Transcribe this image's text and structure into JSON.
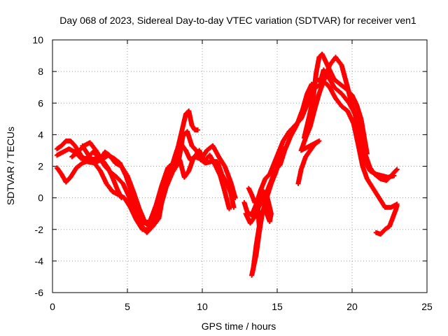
{
  "chart_data": {
    "type": "scatter",
    "title": "Day 068 of 2023, Sidereal Day-to-day VTEC variation (SDTVAR) for receiver ven1",
    "xlabel": "GPS time / hours",
    "ylabel": "SDTVAR / TECUs",
    "xlim": [
      0,
      25
    ],
    "ylim": [
      -6,
      10
    ],
    "xticks": [
      0,
      5,
      10,
      15,
      20,
      25
    ],
    "yticks": [
      -6,
      -4,
      -2,
      0,
      2,
      4,
      6,
      8,
      10
    ],
    "grid": true,
    "marker": "+",
    "color": "#ff0000",
    "series": [
      {
        "name": "trace-1",
        "points": [
          [
            0.3,
            1.9
          ],
          [
            0.6,
            1.5
          ],
          [
            0.9,
            1.0
          ],
          [
            1.2,
            1.3
          ],
          [
            1.6,
            1.9
          ],
          [
            2.0,
            2.2
          ],
          [
            2.5,
            2.4
          ],
          [
            3.0,
            2.5
          ],
          [
            3.4,
            2.3
          ],
          [
            3.7,
            1.9
          ],
          [
            4.0,
            1.3
          ],
          [
            4.3,
            0.6
          ],
          [
            4.6,
            0.0
          ]
        ]
      },
      {
        "name": "trace-2",
        "points": [
          [
            0.3,
            3.1
          ],
          [
            0.6,
            3.3
          ],
          [
            0.9,
            3.6
          ],
          [
            1.2,
            3.6
          ],
          [
            1.5,
            3.3
          ],
          [
            1.9,
            2.7
          ],
          [
            2.3,
            2.3
          ],
          [
            2.8,
            2.2
          ],
          [
            3.2,
            2.4
          ],
          [
            3.5,
            2.9
          ],
          [
            3.8,
            2.7
          ],
          [
            4.2,
            2.2
          ],
          [
            4.6,
            2.0
          ],
          [
            5.0,
            1.4
          ],
          [
            5.4,
            0.4
          ],
          [
            5.8,
            -0.7
          ],
          [
            6.2,
            -1.6
          ],
          [
            6.5,
            -1.8
          ],
          [
            6.9,
            -1.2
          ],
          [
            7.3,
            -0.2
          ],
          [
            7.7,
            1.5
          ],
          [
            8.1,
            2.0
          ],
          [
            8.5,
            2.4
          ],
          [
            8.8,
            1.3
          ],
          [
            9.1,
            1.7
          ],
          [
            9.4,
            2.5
          ],
          [
            9.8,
            3.0
          ],
          [
            10.1,
            2.3
          ],
          [
            10.5,
            2.7
          ],
          [
            10.9,
            2.0
          ],
          [
            11.2,
            1.4
          ],
          [
            11.5,
            0.4
          ],
          [
            11.8,
            -0.7
          ]
        ]
      },
      {
        "name": "trace-3",
        "points": [
          [
            0.3,
            2.7
          ],
          [
            0.7,
            2.9
          ],
          [
            1.1,
            3.1
          ],
          [
            1.5,
            2.9
          ],
          [
            1.9,
            2.5
          ],
          [
            2.3,
            2.5
          ],
          [
            2.7,
            2.9
          ],
          [
            3.1,
            2.6
          ],
          [
            3.5,
            2.0
          ],
          [
            3.9,
            1.6
          ],
          [
            4.3,
            1.3
          ],
          [
            4.7,
            0.9
          ],
          [
            5.1,
            0.1
          ],
          [
            5.5,
            -0.9
          ],
          [
            5.9,
            -1.7
          ],
          [
            6.3,
            -2.2
          ],
          [
            6.7,
            -1.8
          ],
          [
            7.1,
            -1.3
          ],
          [
            7.4,
            0.3
          ],
          [
            7.8,
            2.0
          ],
          [
            8.1,
            2.2
          ],
          [
            8.4,
            3.3
          ],
          [
            8.7,
            4.5
          ],
          [
            8.9,
            5.3
          ],
          [
            9.1,
            5.5
          ],
          [
            9.3,
            4.6
          ],
          [
            9.5,
            4.3
          ],
          [
            9.7,
            4.3
          ]
        ]
      },
      {
        "name": "trace-4",
        "points": [
          [
            1.3,
            2.6
          ],
          [
            1.7,
            2.9
          ],
          [
            2.1,
            3.3
          ],
          [
            2.5,
            3.5
          ],
          [
            2.9,
            3.0
          ],
          [
            3.3,
            2.4
          ],
          [
            3.7,
            2.7
          ],
          [
            4.1,
            2.5
          ],
          [
            4.5,
            2.2
          ],
          [
            4.9,
            1.4
          ],
          [
            5.3,
            0.3
          ],
          [
            5.7,
            -0.9
          ],
          [
            6.1,
            -1.6
          ],
          [
            6.5,
            -1.5
          ],
          [
            6.9,
            -0.5
          ],
          [
            7.3,
            0.8
          ],
          [
            7.7,
            1.9
          ],
          [
            8.0,
            2.1
          ],
          [
            8.3,
            3.0
          ],
          [
            8.6,
            3.4
          ],
          [
            8.9,
            3.0
          ],
          [
            9.2,
            2.4
          ],
          [
            9.5,
            2.6
          ],
          [
            9.8,
            2.5
          ],
          [
            10.2,
            2.2
          ],
          [
            10.6,
            2.3
          ],
          [
            11.0,
            2.3
          ],
          [
            11.3,
            1.5
          ],
          [
            11.6,
            1.0
          ],
          [
            11.9,
            0.3
          ],
          [
            12.1,
            -0.6
          ]
        ]
      },
      {
        "name": "trace-5",
        "points": [
          [
            2.0,
            3.3
          ],
          [
            2.4,
            2.7
          ],
          [
            2.8,
            2.2
          ],
          [
            3.2,
            1.7
          ],
          [
            3.6,
            0.9
          ],
          [
            4.0,
            0.4
          ],
          [
            4.4,
            0.2
          ],
          [
            4.8,
            0.0
          ],
          [
            5.2,
            -0.6
          ],
          [
            5.6,
            -1.4
          ],
          [
            6.0,
            -2.0
          ],
          [
            6.4,
            -2.0
          ],
          [
            6.8,
            -1.5
          ],
          [
            7.2,
            -0.6
          ],
          [
            7.6,
            0.7
          ],
          [
            8.0,
            1.6
          ],
          [
            8.4,
            2.2
          ],
          [
            8.7,
            3.9
          ],
          [
            9.0,
            4.2
          ],
          [
            9.3,
            3.3
          ],
          [
            9.6,
            3.0
          ],
          [
            9.9,
            2.4
          ],
          [
            10.3,
            3.0
          ],
          [
            10.7,
            3.3
          ],
          [
            11.1,
            2.6
          ],
          [
            11.5,
            2.0
          ],
          [
            11.9,
            1.0
          ],
          [
            12.2,
            0.0
          ]
        ]
      },
      {
        "name": "trace-6",
        "points": [
          [
            12.8,
            -0.3
          ],
          [
            13.0,
            -0.9
          ],
          [
            13.3,
            -1.1
          ],
          [
            13.6,
            -0.4
          ],
          [
            13.9,
            0.5
          ],
          [
            14.2,
            1.2
          ],
          [
            14.5,
            1.5
          ],
          [
            14.8,
            2.2
          ],
          [
            15.1,
            2.9
          ],
          [
            15.4,
            3.6
          ],
          [
            15.8,
            4.2
          ],
          [
            16.2,
            4.6
          ],
          [
            16.6,
            5.0
          ],
          [
            17.0,
            5.9
          ],
          [
            17.3,
            6.8
          ],
          [
            17.6,
            7.5
          ],
          [
            17.9,
            7.4
          ],
          [
            18.1,
            8.1
          ],
          [
            18.4,
            7.7
          ],
          [
            18.8,
            7.0
          ],
          [
            19.3,
            6.6
          ],
          [
            19.8,
            6.0
          ],
          [
            20.2,
            5.3
          ],
          [
            20.5,
            3.9
          ],
          [
            20.8,
            2.4
          ],
          [
            21.2,
            1.7
          ],
          [
            21.6,
            1.5
          ],
          [
            22.0,
            1.4
          ],
          [
            22.4,
            1.3
          ],
          [
            22.8,
            1.4
          ]
        ]
      },
      {
        "name": "trace-7",
        "points": [
          [
            12.9,
            -1.0
          ],
          [
            13.2,
            -1.6
          ],
          [
            13.5,
            -1.2
          ],
          [
            13.8,
            -0.5
          ],
          [
            14.1,
            -0.2
          ],
          [
            14.4,
            0.6
          ],
          [
            14.7,
            1.3
          ],
          [
            15.0,
            1.9
          ],
          [
            15.2,
            2.1
          ],
          [
            15.5,
            3.0
          ],
          [
            15.9,
            3.9
          ],
          [
            16.3,
            4.6
          ],
          [
            16.7,
            5.6
          ],
          [
            17.0,
            6.6
          ],
          [
            17.3,
            7.2
          ],
          [
            17.6,
            7.0
          ],
          [
            17.9,
            7.2
          ],
          [
            18.2,
            7.3
          ],
          [
            18.5,
            7.0
          ],
          [
            18.9,
            6.3
          ],
          [
            19.3,
            5.8
          ],
          [
            19.7,
            5.5
          ],
          [
            20.1,
            4.7
          ],
          [
            20.4,
            3.4
          ],
          [
            20.7,
            2.0
          ],
          [
            21.0,
            1.2
          ],
          [
            21.4,
            0.6
          ],
          [
            21.8,
            0.0
          ],
          [
            22.2,
            -0.6
          ],
          [
            22.6,
            -0.6
          ],
          [
            23.0,
            -0.4
          ]
        ]
      },
      {
        "name": "trace-8",
        "points": [
          [
            13.1,
            0.6
          ],
          [
            13.3,
            0.2
          ],
          [
            13.5,
            -0.3
          ],
          [
            13.7,
            -0.1
          ],
          [
            14.0,
            0.0
          ],
          [
            14.3,
            -1.0
          ],
          [
            14.5,
            -1.5
          ],
          [
            14.6,
            -1.0
          ],
          [
            14.3,
            0.2
          ],
          [
            14.1,
            0.4
          ],
          [
            13.9,
            0.0
          ],
          [
            13.7,
            -0.5
          ],
          [
            13.8,
            -1.8
          ],
          [
            13.6,
            -3.0
          ],
          [
            13.4,
            -4.5
          ],
          [
            13.3,
            -4.9
          ],
          [
            13.6,
            -3.6
          ],
          [
            13.8,
            -2.2
          ],
          [
            14.0,
            -1.0
          ],
          [
            14.3,
            0.0
          ],
          [
            14.6,
            0.9
          ],
          [
            14.9,
            1.6
          ],
          [
            15.2,
            2.5
          ],
          [
            15.4,
            3.1
          ]
        ]
      },
      {
        "name": "trace-9",
        "points": [
          [
            16.4,
            0.9
          ],
          [
            16.6,
            1.8
          ],
          [
            16.9,
            2.6
          ],
          [
            17.2,
            3.0
          ],
          [
            17.5,
            3.4
          ],
          [
            17.8,
            3.6
          ],
          [
            16.6,
            3.0
          ],
          [
            16.9,
            3.8
          ],
          [
            17.2,
            4.5
          ],
          [
            17.5,
            5.6
          ],
          [
            17.8,
            6.6
          ],
          [
            18.1,
            7.4
          ],
          [
            18.5,
            8.4
          ],
          [
            18.9,
            8.9
          ],
          [
            19.3,
            8.4
          ],
          [
            19.7,
            7.0
          ],
          [
            20.0,
            5.8
          ],
          [
            20.3,
            5.0
          ],
          [
            20.6,
            4.0
          ],
          [
            20.9,
            2.7
          ],
          [
            21.2,
            1.9
          ],
          [
            21.5,
            1.5
          ],
          [
            21.9,
            1.2
          ],
          [
            22.3,
            1.1
          ],
          [
            22.7,
            1.5
          ],
          [
            23.0,
            1.8
          ]
        ]
      },
      {
        "name": "trace-10",
        "points": [
          [
            21.6,
            -2.2
          ],
          [
            21.9,
            -2.3
          ],
          [
            22.2,
            -2.0
          ],
          [
            22.5,
            -1.8
          ],
          [
            22.7,
            -1.3
          ],
          [
            22.9,
            -0.8
          ],
          [
            23.0,
            -0.5
          ]
        ]
      },
      {
        "name": "trace-11",
        "points": [
          [
            16.8,
            3.8
          ],
          [
            17.1,
            5.0
          ],
          [
            17.4,
            6.3
          ],
          [
            17.6,
            7.9
          ],
          [
            17.8,
            8.9
          ],
          [
            18.0,
            9.1
          ],
          [
            18.2,
            8.7
          ],
          [
            18.5,
            8.1
          ],
          [
            18.8,
            7.5
          ],
          [
            19.2,
            7.2
          ],
          [
            19.6,
            6.9
          ],
          [
            20.0,
            6.5
          ],
          [
            20.3,
            5.9
          ],
          [
            20.6,
            5.0
          ],
          [
            20.8,
            3.9
          ],
          [
            21.0,
            2.8
          ]
        ]
      }
    ]
  }
}
